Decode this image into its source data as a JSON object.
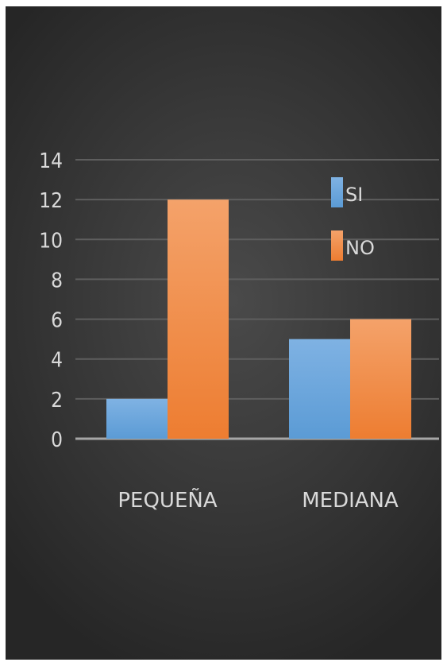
{
  "chart_data": {
    "type": "bar",
    "categories": [
      "PEQUEÑA",
      "MEDIANA"
    ],
    "series": [
      {
        "name": "SI",
        "values": [
          2,
          5
        ],
        "color": "#5b9bd5"
      },
      {
        "name": "NO",
        "values": [
          12,
          6
        ],
        "color": "#ed7d31"
      }
    ],
    "yticks": [
      "0",
      "2",
      "4",
      "6",
      "8",
      "10",
      "12",
      "14"
    ],
    "ylim": [
      0,
      14
    ],
    "grid": true,
    "legend_position": "top-right",
    "title": "",
    "xlabel": "",
    "ylabel": ""
  }
}
